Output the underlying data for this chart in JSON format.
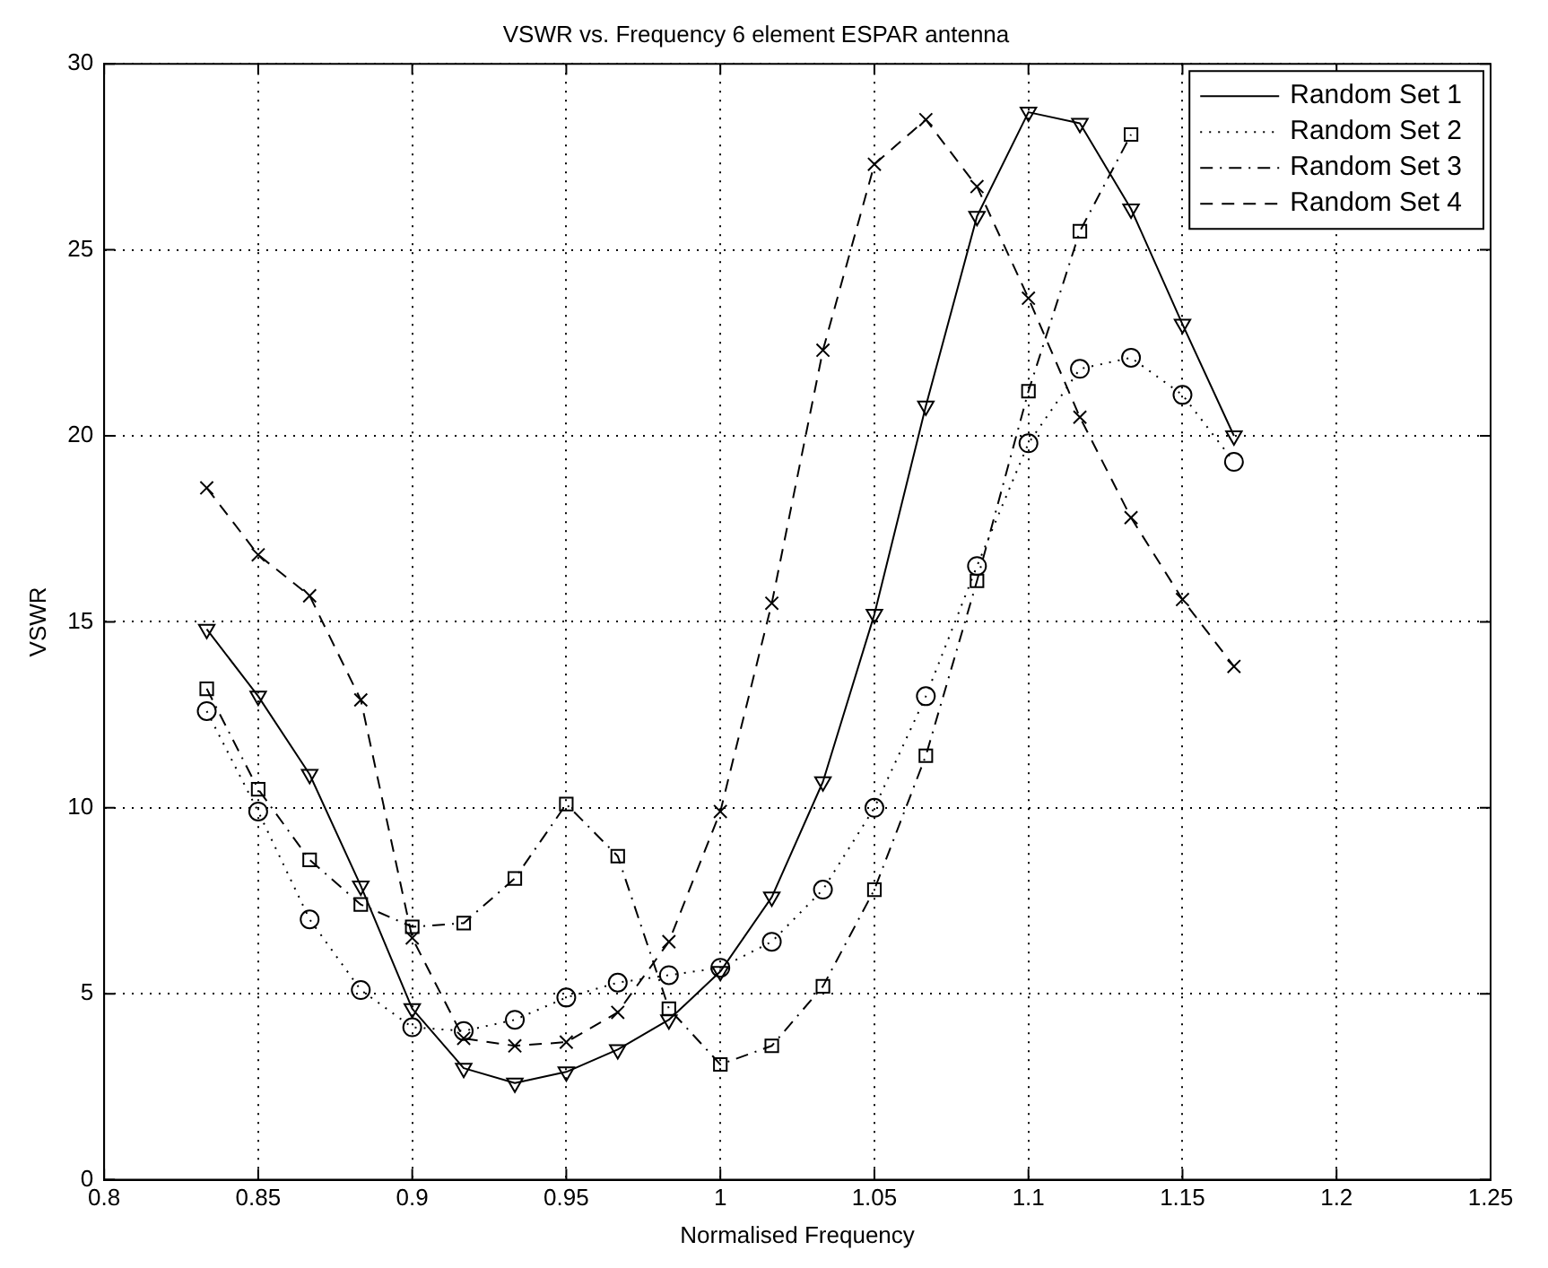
{
  "chart_data": {
    "type": "line",
    "title": "VSWR vs. Frequency 6 element ESPAR antenna",
    "xlabel": "Normalised Frequency",
    "ylabel": "VSWR",
    "x": [
      0.8333,
      0.85,
      0.8667,
      0.8833,
      0.9,
      0.9167,
      0.9333,
      0.95,
      0.9667,
      0.9833,
      1.0,
      1.0167,
      1.0333,
      1.05,
      1.0667,
      1.0833,
      1.1,
      1.1167,
      1.1333,
      1.15,
      1.1667
    ],
    "series": [
      {
        "name": "Random Set 1",
        "color": "#000000",
        "marker": "triangle",
        "line_style": "solid",
        "values": [
          14.8,
          13.0,
          10.9,
          7.9,
          4.6,
          3.0,
          2.6,
          2.9,
          3.5,
          4.3,
          5.6,
          7.6,
          10.7,
          15.2,
          20.8,
          25.9,
          28.7,
          28.4,
          26.1,
          23.0,
          20.0
        ]
      },
      {
        "name": "Random Set 2",
        "color": "#000000",
        "marker": "circle",
        "line_style": "dotted",
        "values": [
          12.6,
          9.9,
          7.0,
          5.1,
          4.1,
          4.0,
          4.3,
          4.9,
          5.3,
          5.5,
          5.7,
          6.4,
          7.8,
          10.0,
          13.0,
          16.5,
          19.8,
          21.8,
          22.1,
          21.1,
          19.3
        ]
      },
      {
        "name": "Random Set 3",
        "color": "#000000",
        "marker": "square",
        "line_style": "dashdot",
        "values": [
          13.2,
          10.5,
          8.6,
          7.4,
          6.8,
          6.9,
          8.1,
          10.1,
          8.7,
          4.6,
          3.1,
          3.6,
          5.2,
          7.8,
          11.4,
          16.1,
          21.2,
          25.5,
          28.1,
          null,
          null
        ]
      },
      {
        "name": "Random Set 4",
        "color": "#000000",
        "marker": "cross",
        "line_style": "dashed",
        "values": [
          18.6,
          16.8,
          15.7,
          12.9,
          6.5,
          3.8,
          3.6,
          3.7,
          4.5,
          6.4,
          9.9,
          15.5,
          22.3,
          27.3,
          28.5,
          26.7,
          23.7,
          20.5,
          17.8,
          15.6,
          13.8
        ]
      }
    ],
    "xlim": [
      0.8,
      1.25
    ],
    "xticks": [
      0.8,
      0.85,
      0.9,
      0.95,
      1,
      1.05,
      1.1,
      1.15,
      1.2,
      1.25
    ],
    "ylim": [
      0,
      30
    ],
    "yticks": [
      0,
      5,
      10,
      15,
      20,
      25,
      30
    ],
    "grid": true,
    "legend": "top right"
  }
}
